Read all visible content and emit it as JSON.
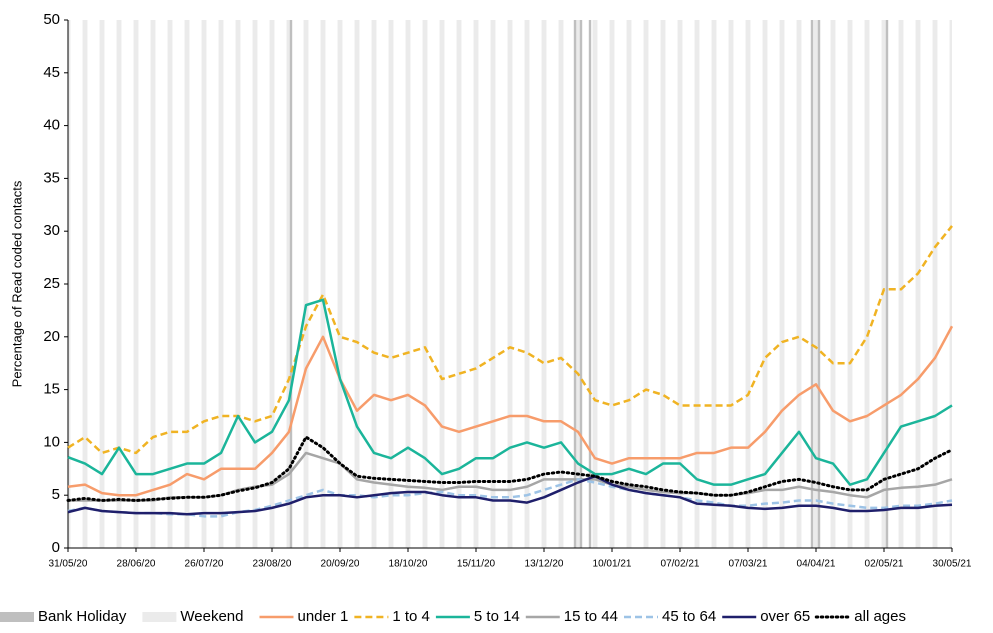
{
  "chart_data": {
    "type": "line",
    "y_label": "Percentage of Read coded contacts",
    "categories": [
      "31/05/20",
      null,
      null,
      null,
      "28/06/20",
      null,
      null,
      null,
      "26/07/20",
      null,
      null,
      null,
      "23/08/20",
      null,
      null,
      null,
      "20/09/20",
      null,
      null,
      null,
      "18/10/20",
      null,
      null,
      null,
      "15/11/20",
      null,
      null,
      null,
      "13/12/20",
      null,
      null,
      null,
      "10/01/21",
      null,
      null,
      null,
      "07/02/21",
      null,
      null,
      null,
      "07/03/21",
      null,
      null,
      null,
      "04/04/21",
      null,
      null,
      null,
      "02/05/21",
      null,
      null,
      null,
      "30/05/21"
    ],
    "ylim": [
      0,
      50
    ],
    "yticks": [
      0,
      5,
      10,
      15,
      20,
      25,
      30,
      35,
      40,
      45,
      50
    ],
    "background_legend": [
      {
        "name": "Bank Holiday",
        "color": "#bfbfbf"
      },
      {
        "name": "Weekend",
        "color": "#ebebeb"
      }
    ],
    "series": [
      {
        "name": "under 1",
        "color": "#f79c6b",
        "dash": "solid",
        "values": [
          5.8,
          6,
          5.2,
          5,
          5,
          5.5,
          6,
          7,
          6.5,
          7.5,
          7.5,
          7.5,
          9,
          11,
          17,
          20,
          16,
          13,
          14.5,
          14,
          14.5,
          13.5,
          11.5,
          11,
          11.5,
          12,
          12.5,
          12.5,
          12,
          12,
          11,
          8.5,
          8,
          8.5,
          8.5,
          8.5,
          8.5,
          9,
          9,
          9.5,
          9.5,
          11,
          13,
          14.5,
          15.5,
          13,
          12,
          12.5,
          13.5,
          14.5,
          16,
          18,
          21
        ]
      },
      {
        "name": "1 to 4",
        "color": "#f0b323",
        "dash": "dashed",
        "values": [
          9.5,
          10.5,
          9,
          9.5,
          9,
          10.5,
          11,
          11,
          12,
          12.5,
          12.5,
          12,
          12.5,
          16,
          21,
          24,
          20,
          19.5,
          18.5,
          18,
          18.5,
          19,
          16,
          16.5,
          17,
          18,
          19,
          18.5,
          17.5,
          18,
          16.5,
          14,
          13.5,
          14,
          15,
          14.5,
          13.5,
          13.5,
          13.5,
          13.5,
          14.5,
          18,
          19.5,
          20,
          19,
          17.5,
          17.5,
          20,
          24.5,
          24.5,
          26,
          28.5,
          30.5
        ]
      },
      {
        "name": "5 to 14",
        "color": "#1bb59a",
        "dash": "solid",
        "values": [
          8.6,
          8,
          7,
          9.5,
          7,
          7,
          7.5,
          8,
          8,
          9,
          12.5,
          10,
          11,
          14,
          23,
          23.5,
          16,
          11.5,
          9,
          8.5,
          9.5,
          8.5,
          7,
          7.5,
          8.5,
          8.5,
          9.5,
          10,
          9.5,
          10,
          8,
          7,
          7,
          7.5,
          7,
          8,
          8,
          6.5,
          6,
          6,
          6.5,
          7,
          9,
          11,
          8.5,
          8,
          6,
          6.5,
          9,
          11.5,
          12,
          12.5,
          13.5
        ]
      },
      {
        "name": "15 to 44",
        "color": "#a6a6a6",
        "dash": "solid",
        "values": [
          4.5,
          4.5,
          4.5,
          4.5,
          4.5,
          4.5,
          4.8,
          4.8,
          4.8,
          5,
          5.5,
          5.8,
          6,
          7,
          9,
          8.5,
          8,
          6.5,
          6.2,
          6,
          5.8,
          5.7,
          5.5,
          5.8,
          5.8,
          5.5,
          5.5,
          5.8,
          6.5,
          6.5,
          6.5,
          6.5,
          6,
          5.8,
          5.5,
          5.3,
          5.2,
          5.2,
          5,
          5,
          5.2,
          5.5,
          5.5,
          5.8,
          5.5,
          5.3,
          5,
          4.8,
          5.5,
          5.7,
          5.8,
          6,
          6.5
        ]
      },
      {
        "name": "45 to 64",
        "color": "#9dc3e6",
        "dash": "dashed",
        "values": [
          3.5,
          3.8,
          3.5,
          3.4,
          3.3,
          3.3,
          3.2,
          3.2,
          3,
          3,
          3.4,
          3.6,
          4,
          4.5,
          5,
          5.5,
          5,
          5,
          4.8,
          5,
          5,
          5.2,
          5.3,
          5,
          5,
          4.8,
          4.8,
          5,
          5.5,
          6,
          6.5,
          6.2,
          5.8,
          5.5,
          5.2,
          5,
          4.8,
          4.5,
          4.3,
          4,
          4,
          4.2,
          4.3,
          4.5,
          4.5,
          4.2,
          4,
          3.8,
          3.8,
          4,
          4,
          4.2,
          4.5
        ]
      },
      {
        "name": "over 65",
        "color": "#1f1f6b",
        "dash": "solid",
        "values": [
          3.4,
          3.8,
          3.5,
          3.4,
          3.3,
          3.3,
          3.3,
          3.2,
          3.3,
          3.3,
          3.4,
          3.5,
          3.8,
          4.2,
          4.8,
          5,
          5,
          4.8,
          5,
          5.2,
          5.3,
          5.3,
          5,
          4.8,
          4.8,
          4.5,
          4.5,
          4.3,
          4.8,
          5.5,
          6.2,
          6.8,
          6,
          5.5,
          5.2,
          5,
          4.8,
          4.2,
          4.1,
          4,
          3.8,
          3.7,
          3.8,
          4,
          4,
          3.8,
          3.5,
          3.5,
          3.6,
          3.8,
          3.8,
          4,
          4.1
        ]
      },
      {
        "name": "all ages",
        "color": "#000000",
        "dash": "dotted",
        "values": [
          4.5,
          4.7,
          4.5,
          4.6,
          4.5,
          4.6,
          4.7,
          4.8,
          4.8,
          5,
          5.4,
          5.7,
          6.2,
          7.5,
          10.5,
          9.5,
          8,
          6.8,
          6.6,
          6.5,
          6.4,
          6.3,
          6.2,
          6.2,
          6.3,
          6.3,
          6.3,
          6.5,
          7,
          7.2,
          7,
          6.8,
          6.3,
          6,
          5.8,
          5.5,
          5.3,
          5.2,
          5,
          5,
          5.3,
          5.8,
          6.3,
          6.5,
          6.2,
          5.8,
          5.5,
          5.5,
          6.5,
          7,
          7.5,
          8.5,
          9.3
        ]
      }
    ]
  }
}
